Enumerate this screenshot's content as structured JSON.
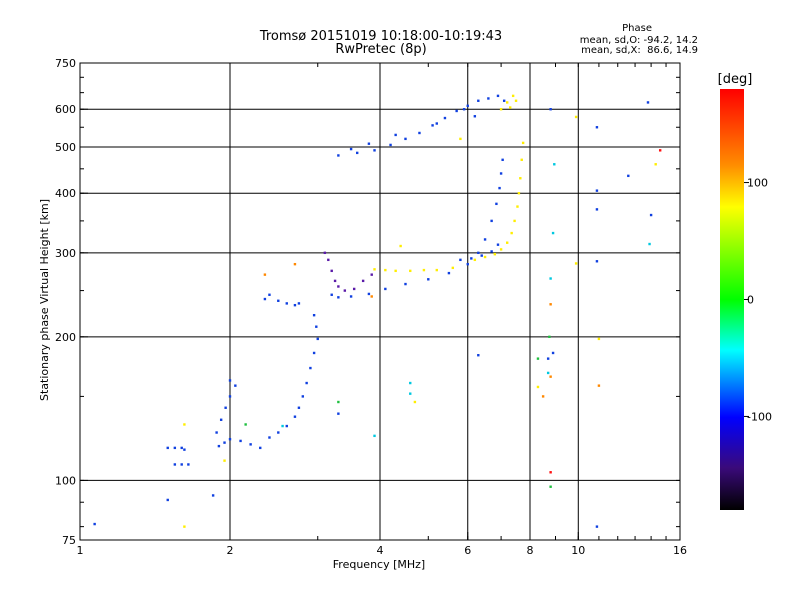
{
  "chart_data": {
    "type": "scatter",
    "title": "Tromsø 20151019 10:18:00-10:19:43",
    "subtitle": "RwPretec (8p)",
    "xlabel": "Frequency [MHz]",
    "ylabel": "Stationary phase Virtual Height [km]",
    "x_scale": "log",
    "y_scale": "log",
    "xlim": [
      1,
      16
    ],
    "ylim": [
      75,
      750
    ],
    "x_ticks": [
      1,
      2,
      4,
      6,
      8,
      10,
      16
    ],
    "y_ticks": [
      75,
      100,
      200,
      300,
      400,
      500,
      600,
      750
    ],
    "x_gridlines": [
      2,
      4,
      6,
      8,
      10
    ],
    "y_gridlines": [
      100,
      200,
      300,
      400,
      500,
      600
    ],
    "grid": true,
    "phase_stats": {
      "heading": "Phase",
      "line_o": "mean, sd,O: -94.2, 14.2",
      "line_x": "mean, sd,X:  86.6, 14.9"
    },
    "colorbar": {
      "label": "[deg]",
      "ticks": [
        100,
        0,
        -100
      ],
      "range": [
        -180,
        180
      ],
      "colors_top_to_bottom": [
        "#ff0000",
        "#ffa500",
        "#ffff00",
        "#00ff00",
        "#00ffff",
        "#0000ff",
        "#000000"
      ]
    },
    "series": [
      {
        "name": "",
        "color": "#1040e0",
        "points": [
          [
            1.07,
            81
          ],
          [
            1.5,
            117
          ],
          [
            1.55,
            117
          ],
          [
            1.6,
            117
          ],
          [
            1.62,
            116
          ],
          [
            1.55,
            108
          ],
          [
            1.6,
            108
          ],
          [
            1.65,
            108
          ],
          [
            1.5,
            91
          ],
          [
            1.85,
            93
          ],
          [
            1.9,
            118
          ],
          [
            1.95,
            120
          ],
          [
            2.0,
            122
          ],
          [
            2.1,
            121
          ],
          [
            2.2,
            119
          ],
          [
            2.3,
            117
          ],
          [
            1.88,
            126
          ],
          [
            1.92,
            134
          ],
          [
            1.96,
            142
          ],
          [
            2.0,
            150
          ],
          [
            2.05,
            158
          ],
          [
            2.0,
            162
          ],
          [
            2.4,
            123
          ],
          [
            2.5,
            126
          ],
          [
            2.6,
            130
          ],
          [
            2.7,
            136
          ],
          [
            2.75,
            142
          ],
          [
            2.8,
            150
          ],
          [
            2.85,
            160
          ],
          [
            2.9,
            172
          ],
          [
            2.95,
            185
          ],
          [
            3.0,
            198
          ],
          [
            2.98,
            210
          ],
          [
            2.95,
            222
          ],
          [
            2.4,
            245
          ],
          [
            2.5,
            238
          ],
          [
            2.6,
            235
          ],
          [
            2.7,
            233
          ],
          [
            2.75,
            235
          ],
          [
            2.35,
            240
          ],
          [
            3.2,
            245
          ],
          [
            3.3,
            242
          ],
          [
            3.5,
            243
          ],
          [
            3.8,
            246
          ],
          [
            4.1,
            252
          ],
          [
            4.5,
            258
          ],
          [
            5.0,
            264
          ],
          [
            5.5,
            272
          ],
          [
            6.0,
            284
          ],
          [
            6.3,
            300
          ],
          [
            6.5,
            320
          ],
          [
            6.7,
            350
          ],
          [
            6.85,
            380
          ],
          [
            6.95,
            410
          ],
          [
            7.0,
            440
          ],
          [
            7.05,
            470
          ],
          [
            5.8,
            290
          ],
          [
            6.1,
            292
          ],
          [
            6.4,
            296
          ],
          [
            6.7,
            302
          ],
          [
            6.9,
            312
          ],
          [
            3.3,
            480
          ],
          [
            3.6,
            486
          ],
          [
            3.9,
            492
          ],
          [
            4.2,
            505
          ],
          [
            4.5,
            520
          ],
          [
            4.8,
            535
          ],
          [
            5.1,
            555
          ],
          [
            5.4,
            575
          ],
          [
            5.7,
            595
          ],
          [
            6.0,
            610
          ],
          [
            6.3,
            625
          ],
          [
            6.6,
            632
          ],
          [
            6.9,
            640
          ],
          [
            7.1,
            625
          ],
          [
            6.2,
            580
          ],
          [
            5.9,
            600
          ],
          [
            5.2,
            560
          ],
          [
            4.3,
            530
          ],
          [
            3.8,
            508
          ],
          [
            3.5,
            495
          ],
          [
            3.3,
            138
          ],
          [
            6.3,
            183
          ],
          [
            8.7,
            180
          ],
          [
            8.9,
            185
          ],
          [
            8.8,
            600
          ],
          [
            10.9,
            550
          ],
          [
            10.9,
            405
          ],
          [
            10.9,
            370
          ],
          [
            10.9,
            288
          ],
          [
            13.8,
            620
          ],
          [
            14.0,
            360
          ],
          [
            12.6,
            435
          ],
          [
            10.9,
            80
          ]
        ]
      },
      {
        "name": "",
        "color": "#5a1aa8",
        "points": [
          [
            3.15,
            290
          ],
          [
            3.2,
            275
          ],
          [
            3.25,
            262
          ],
          [
            3.3,
            255
          ],
          [
            3.4,
            250
          ],
          [
            3.55,
            252
          ],
          [
            3.7,
            262
          ],
          [
            3.85,
            270
          ],
          [
            3.1,
            300
          ]
        ]
      },
      {
        "name": "",
        "color": "#ffee00",
        "points": [
          [
            3.9,
            277
          ],
          [
            4.1,
            276
          ],
          [
            4.3,
            275
          ],
          [
            4.6,
            275
          ],
          [
            4.9,
            276
          ],
          [
            5.2,
            276
          ],
          [
            5.6,
            279
          ],
          [
            6.2,
            290
          ],
          [
            6.5,
            294
          ],
          [
            6.8,
            298
          ],
          [
            7.0,
            305
          ],
          [
            7.2,
            315
          ],
          [
            7.35,
            330
          ],
          [
            7.45,
            350
          ],
          [
            7.55,
            375
          ],
          [
            7.6,
            400
          ],
          [
            7.65,
            430
          ],
          [
            7.7,
            470
          ],
          [
            7.75,
            510
          ],
          [
            7.0,
            600
          ],
          [
            7.2,
            620
          ],
          [
            7.4,
            640
          ],
          [
            7.5,
            625
          ],
          [
            7.3,
            605
          ],
          [
            5.8,
            520
          ],
          [
            4.7,
            146
          ],
          [
            4.4,
            310
          ],
          [
            1.62,
            80
          ],
          [
            1.62,
            131
          ],
          [
            1.95,
            110
          ],
          [
            9.9,
            285
          ],
          [
            9.9,
            578
          ],
          [
            14.3,
            460
          ],
          [
            11.0,
            198
          ],
          [
            8.3,
            157
          ]
        ]
      },
      {
        "name": "",
        "color": "#ff8800",
        "points": [
          [
            2.35,
            270
          ],
          [
            2.7,
            284
          ],
          [
            8.8,
            234
          ],
          [
            3.85,
            243
          ],
          [
            11.0,
            158
          ],
          [
            8.8,
            165
          ],
          [
            8.5,
            150
          ]
        ]
      },
      {
        "name": "",
        "color": "#00c8e0",
        "points": [
          [
            3.9,
            124
          ],
          [
            4.6,
            160
          ],
          [
            4.6,
            152
          ],
          [
            8.7,
            168
          ],
          [
            8.9,
            330
          ],
          [
            8.95,
            460
          ],
          [
            8.8,
            265
          ],
          [
            13.9,
            313
          ],
          [
            2.55,
            130
          ]
        ]
      },
      {
        "name": "",
        "color": "#20c040",
        "points": [
          [
            3.3,
            146
          ],
          [
            2.15,
            131
          ],
          [
            8.8,
            97
          ],
          [
            8.75,
            200
          ],
          [
            8.3,
            180
          ]
        ]
      },
      {
        "name": "",
        "color": "#ff1010",
        "points": [
          [
            8.8,
            104
          ],
          [
            14.6,
            492
          ]
        ]
      }
    ]
  }
}
